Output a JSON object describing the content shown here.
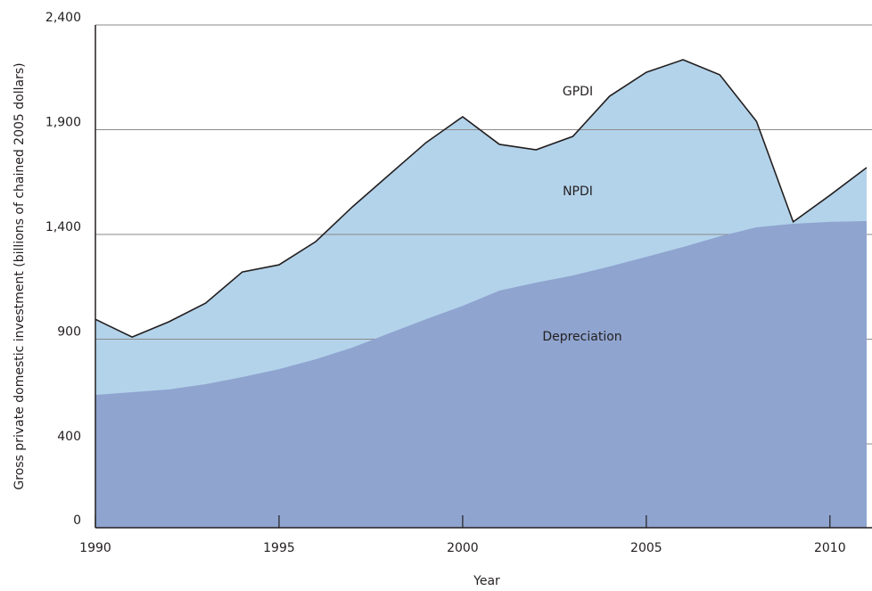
{
  "chart_data": {
    "type": "area",
    "x_label": "Year",
    "y_label": "Gross private domestic investment (billions of chained 2005 dollars)",
    "x": [
      1990,
      1991,
      1992,
      1993,
      1994,
      1995,
      1996,
      1997,
      1998,
      1999,
      2000,
      2001,
      2002,
      2003,
      2004,
      2005,
      2006,
      2007,
      2008,
      2009,
      2010,
      2011
    ],
    "series": [
      {
        "name": "GPDI",
        "color": "#b3d3ea",
        "values": [
          995,
          910,
          983,
          1072,
          1221,
          1255,
          1366,
          1532,
          1685,
          1838,
          1962,
          1830,
          1804,
          1868,
          2060,
          2174,
          2234,
          2162,
          1940,
          1460,
          1587,
          1719
        ]
      },
      {
        "name": "Depreciation",
        "color": "#8fa4cf",
        "values": [
          634,
          647,
          660,
          685,
          719,
          757,
          804,
          860,
          928,
          995,
          1059,
          1132,
          1170,
          1204,
          1247,
          1293,
          1340,
          1391,
          1434,
          1451,
          1460,
          1464
        ]
      }
    ],
    "annotations": [
      "NPDI"
    ],
    "xlim": [
      1990,
      2011
    ],
    "ylim": [
      0,
      2400
    ],
    "xticks": [
      1990,
      1995,
      2000,
      2005,
      2010
    ],
    "yticks": [
      0,
      400,
      900,
      {
        "value": 1400,
        "label": "1,400"
      },
      {
        "value": 1900,
        "label": "1,900"
      },
      {
        "value": 2400,
        "label": "2,400"
      }
    ],
    "grid": true
  }
}
